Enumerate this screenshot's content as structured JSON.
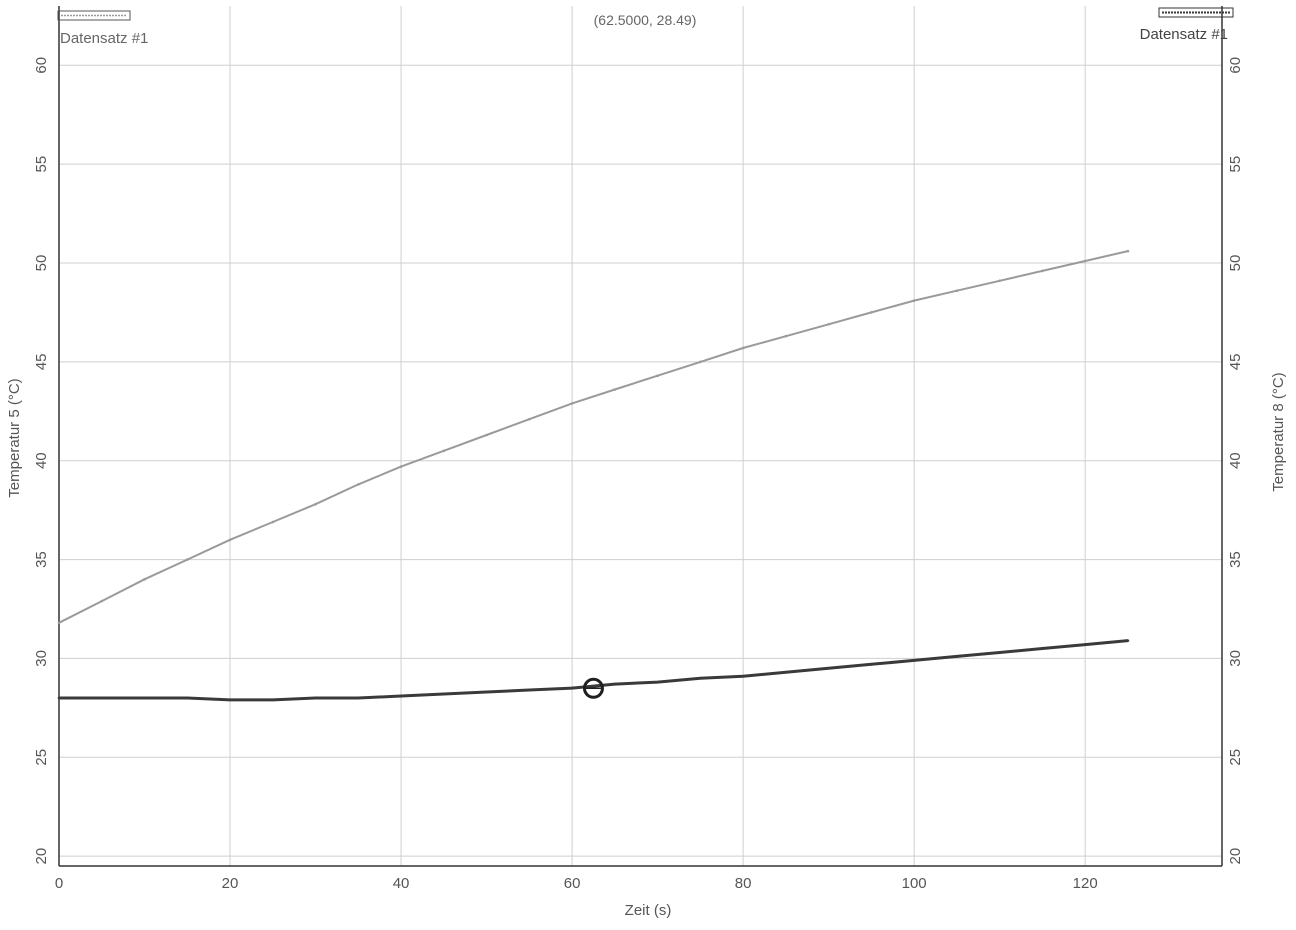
{
  "readout": "(62.5000, 28.49)",
  "colors": {
    "background": "#ffffff",
    "grid": "#cfcfcf",
    "axis": "#333333",
    "text": "#555555",
    "series_left": "#9a9a9a",
    "series_right": "#3a3a3a",
    "cursor": "#1f1f1f"
  },
  "chart_data": {
    "type": "line",
    "xlabel": "Zeit (s)",
    "ylabel_left": "Temperatur 5 (°C)",
    "ylabel_right": "Temperatur 8 (°C)",
    "xlim": [
      0,
      136
    ],
    "ylim_left": [
      19.5,
      63
    ],
    "ylim_right": [
      19.5,
      63
    ],
    "x_ticks": [
      0,
      20,
      40,
      60,
      80,
      100,
      120
    ],
    "y_ticks": [
      20,
      25,
      30,
      35,
      40,
      45,
      50,
      55,
      60
    ],
    "grid": true,
    "legend": [
      {
        "label": "Datensatz #1",
        "axis": "left",
        "placement": "top-left"
      },
      {
        "label": "Datensatz #1",
        "axis": "right",
        "placement": "top-right"
      }
    ],
    "series": [
      {
        "axis": "left",
        "x": [
          0,
          5,
          10,
          15,
          20,
          25,
          30,
          35,
          40,
          45,
          50,
          55,
          60,
          65,
          70,
          75,
          80,
          85,
          90,
          95,
          100,
          105,
          110,
          115,
          120,
          125
        ],
        "values": [
          31.8,
          32.9,
          34.0,
          35.0,
          36.0,
          36.9,
          37.8,
          38.8,
          39.7,
          40.5,
          41.3,
          42.1,
          42.9,
          43.6,
          44.3,
          45.0,
          45.7,
          46.3,
          46.9,
          47.5,
          48.1,
          48.6,
          49.1,
          49.6,
          50.1,
          50.6
        ]
      },
      {
        "axis": "right",
        "x": [
          0,
          5,
          10,
          15,
          20,
          25,
          30,
          35,
          40,
          45,
          50,
          55,
          60,
          65,
          70,
          75,
          80,
          85,
          90,
          95,
          100,
          105,
          110,
          115,
          120,
          125
        ],
        "values": [
          28.0,
          28.0,
          28.0,
          28.0,
          27.9,
          27.9,
          28.0,
          28.0,
          28.1,
          28.2,
          28.3,
          28.4,
          28.5,
          28.7,
          28.8,
          29.0,
          29.1,
          29.3,
          29.5,
          29.7,
          29.9,
          30.1,
          30.3,
          30.5,
          30.7,
          30.9
        ]
      }
    ],
    "cursor": {
      "x": 62.5,
      "y": 28.49,
      "axis": "right"
    }
  }
}
